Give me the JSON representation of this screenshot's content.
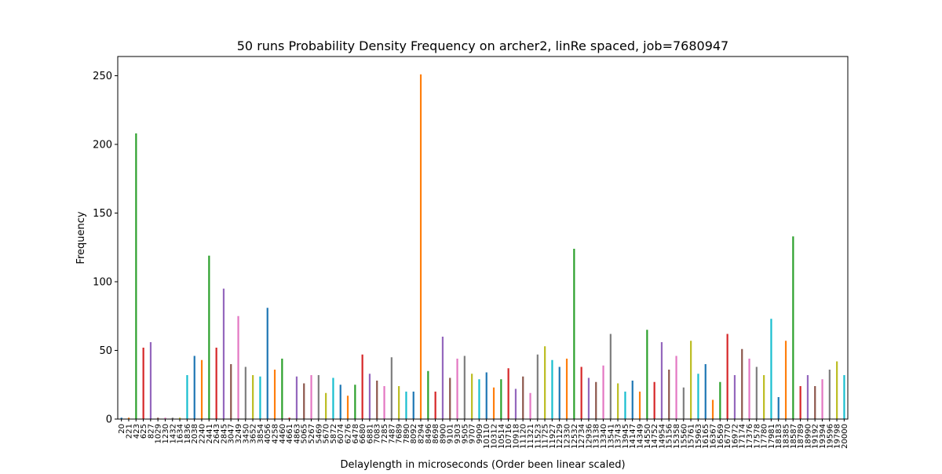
{
  "chart_data": {
    "type": "bar",
    "title": "50 runs Probability Density Frequency on archer2, linRe spaced, job=7680947",
    "xlabel": "Delaylength in microseconds (Order been linear scaled)",
    "ylabel": "Frequency",
    "ylim": [
      0,
      264
    ],
    "yticks": [
      0,
      50,
      100,
      150,
      200,
      250
    ],
    "grid": false,
    "legend": "none",
    "categories": [
      "20",
      "221",
      "423",
      "625",
      "827",
      "1029",
      "1230",
      "1432",
      "1634",
      "1836",
      "2038",
      "2240",
      "2441",
      "2643",
      "2845",
      "3047",
      "3249",
      "3450",
      "3652",
      "3854",
      "4056",
      "4258",
      "4460",
      "4661",
      "4863",
      "5065",
      "5267",
      "5469",
      "5670",
      "5872",
      "6074",
      "6276",
      "6478",
      "6680",
      "6881",
      "7083",
      "7285",
      "7487",
      "7689",
      "7890",
      "8092",
      "8294",
      "8496",
      "8698",
      "8900",
      "9101",
      "9303",
      "9505",
      "9707",
      "9909",
      "10110",
      "10312",
      "10514",
      "10716",
      "10918",
      "11120",
      "11321",
      "11523",
      "11725",
      "11927",
      "12129",
      "12330",
      "12532",
      "12734",
      "12936",
      "13138",
      "13340",
      "13541",
      "13743",
      "13945",
      "14147",
      "14349",
      "14550",
      "14752",
      "14954",
      "15156",
      "15358",
      "15560",
      "15761",
      "15963",
      "16165",
      "16367",
      "16569",
      "16770",
      "16972",
      "17174",
      "17376",
      "17578",
      "17780",
      "17981",
      "18183",
      "18385",
      "18587",
      "18789",
      "18990",
      "19192",
      "19394",
      "19596",
      "19798",
      "20000"
    ],
    "values": [
      1,
      1,
      208,
      52,
      56,
      1,
      1,
      1,
      1,
      32,
      46,
      43,
      119,
      52,
      95,
      40,
      75,
      38,
      32,
      31,
      81,
      36,
      44,
      1,
      31,
      26,
      32,
      32,
      19,
      30,
      25,
      17,
      25,
      47,
      33,
      28,
      24,
      45,
      24,
      20,
      20,
      251,
      35,
      20,
      60,
      30,
      44,
      46,
      33,
      29,
      34,
      23,
      29,
      37,
      22,
      31,
      19,
      47,
      53,
      43,
      38,
      44,
      124,
      38,
      30,
      27,
      39,
      62,
      26,
      20,
      28,
      20,
      65,
      27,
      56,
      36,
      46,
      23,
      57,
      33,
      40,
      14,
      27,
      62,
      32,
      51,
      44,
      38,
      32,
      73,
      16,
      57,
      133,
      24,
      32,
      24,
      29,
      36,
      42,
      32
    ],
    "colors": [
      "#1f77b4",
      "#ff7f0e",
      "#2ca02c",
      "#d62728",
      "#9467bd",
      "#8c564b",
      "#e377c2",
      "#7f7f7f",
      "#bcbd22",
      "#17becf"
    ]
  }
}
